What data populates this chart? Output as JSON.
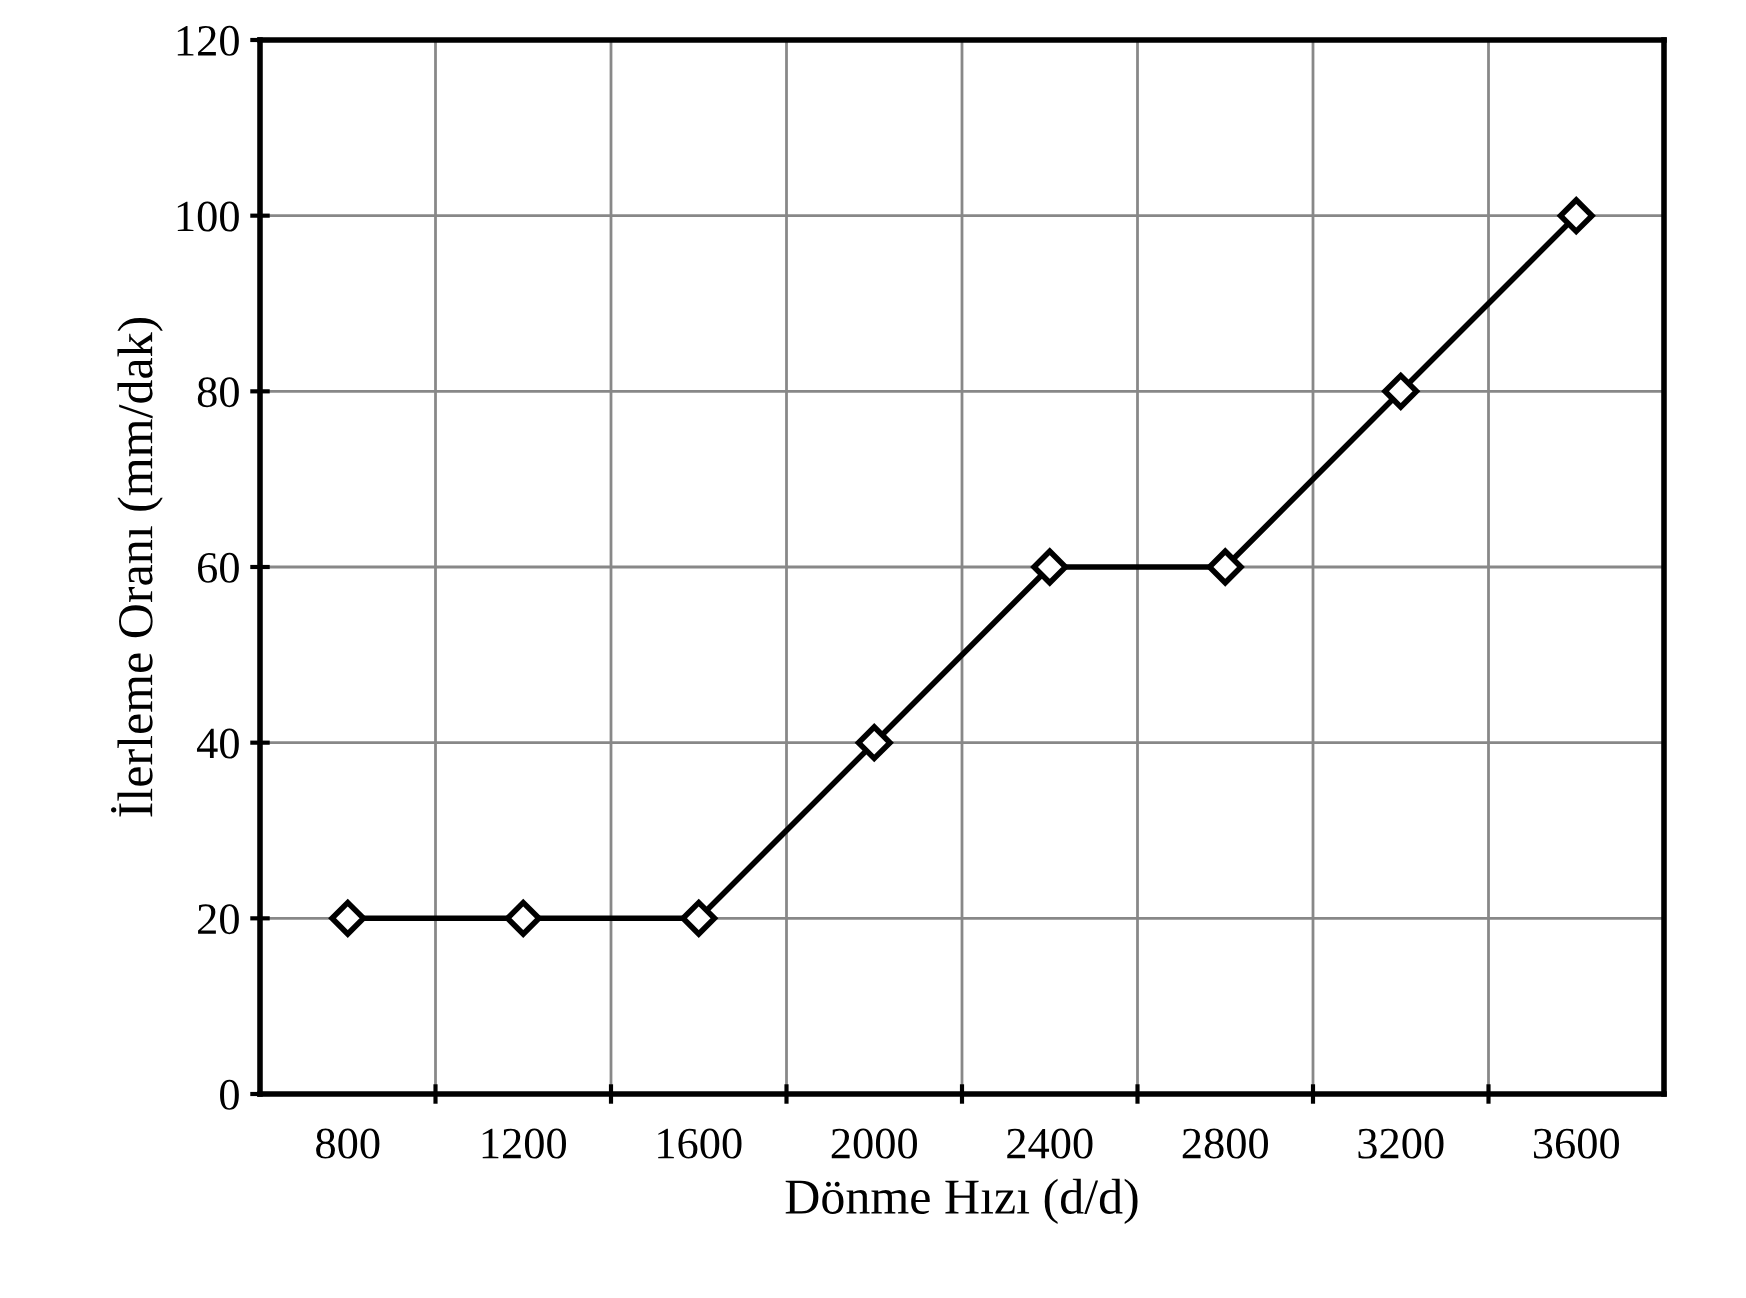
{
  "chart_data": {
    "type": "line",
    "xlabel": "Dönme Hızı (d/d)",
    "ylabel": "İlerleme Oranı (mm/dak)",
    "categories": [
      "800",
      "1200",
      "1600",
      "2000",
      "2400",
      "2800",
      "3200",
      "3600"
    ],
    "series": [
      {
        "color": "#000000",
        "values": [
          20,
          20,
          20,
          40,
          60,
          60,
          80,
          100
        ]
      }
    ],
    "ylim": [
      0,
      120
    ],
    "yticks": [
      0,
      20,
      40,
      60,
      80,
      100,
      120
    ],
    "grid": true,
    "marker": "diamond",
    "line_style": "solid",
    "legend": false
  }
}
